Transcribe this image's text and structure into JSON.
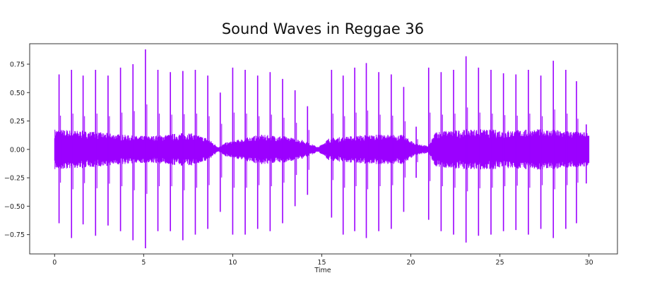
{
  "chart_data": {
    "type": "line",
    "title": "Sound Waves in Reggae 36",
    "xlabel": "Time",
    "ylabel": "",
    "xlim": [
      -1.4,
      31.6
    ],
    "ylim": [
      -0.92,
      0.93
    ],
    "x_ticks": [
      0,
      5,
      10,
      15,
      20,
      25,
      30
    ],
    "x_tick_labels": [
      "0",
      "5",
      "10",
      "15",
      "20",
      "25",
      "30"
    ],
    "y_ticks": [
      0.75,
      0.5,
      0.25,
      0.0,
      -0.25,
      -0.5,
      -0.75
    ],
    "y_tick_labels": [
      "0.75",
      "0.50",
      "0.25",
      "0.00",
      "−0.25",
      "−0.50",
      "−0.75"
    ],
    "grid": false,
    "legend": "none",
    "series": [
      {
        "color": "#9b00ff",
        "duration": 30.0,
        "body_envelope": [
          {
            "t": 0.0,
            "a": 0.18
          },
          {
            "t": 2.0,
            "a": 0.16
          },
          {
            "t": 4.5,
            "a": 0.12
          },
          {
            "t": 5.5,
            "a": 0.12
          },
          {
            "t": 7.5,
            "a": 0.15
          },
          {
            "t": 8.6,
            "a": 0.1
          },
          {
            "t": 9.2,
            "a": 0.02
          },
          {
            "t": 9.6,
            "a": 0.06
          },
          {
            "t": 11.5,
            "a": 0.13
          },
          {
            "t": 12.8,
            "a": 0.12
          },
          {
            "t": 14.0,
            "a": 0.08
          },
          {
            "t": 14.8,
            "a": 0.02
          },
          {
            "t": 15.4,
            "a": 0.1
          },
          {
            "t": 17.5,
            "a": 0.13
          },
          {
            "t": 19.5,
            "a": 0.13
          },
          {
            "t": 20.3,
            "a": 0.05
          },
          {
            "t": 21.0,
            "a": 0.03
          },
          {
            "t": 21.4,
            "a": 0.16
          },
          {
            "t": 23.5,
            "a": 0.18
          },
          {
            "t": 25.5,
            "a": 0.17
          },
          {
            "t": 27.5,
            "a": 0.18
          },
          {
            "t": 30.0,
            "a": 0.15
          }
        ],
        "peaks": [
          {
            "t": 0.25,
            "pos": 0.66,
            "neg": -0.65
          },
          {
            "t": 0.95,
            "pos": 0.7,
            "neg": -0.78
          },
          {
            "t": 1.6,
            "pos": 0.65,
            "neg": -0.66
          },
          {
            "t": 2.3,
            "pos": 0.7,
            "neg": -0.76
          },
          {
            "t": 3.0,
            "pos": 0.65,
            "neg": -0.67
          },
          {
            "t": 3.7,
            "pos": 0.72,
            "neg": -0.72
          },
          {
            "t": 4.4,
            "pos": 0.75,
            "neg": -0.8
          },
          {
            "t": 5.1,
            "pos": 0.88,
            "neg": -0.87
          },
          {
            "t": 5.8,
            "pos": 0.7,
            "neg": -0.72
          },
          {
            "t": 6.5,
            "pos": 0.68,
            "neg": -0.72
          },
          {
            "t": 7.2,
            "pos": 0.69,
            "neg": -0.8
          },
          {
            "t": 7.9,
            "pos": 0.7,
            "neg": -0.75
          },
          {
            "t": 8.6,
            "pos": 0.65,
            "neg": -0.7
          },
          {
            "t": 9.3,
            "pos": 0.5,
            "neg": -0.55
          },
          {
            "t": 10.0,
            "pos": 0.72,
            "neg": -0.75
          },
          {
            "t": 10.7,
            "pos": 0.7,
            "neg": -0.75
          },
          {
            "t": 11.4,
            "pos": 0.65,
            "neg": -0.7
          },
          {
            "t": 12.1,
            "pos": 0.68,
            "neg": -0.72
          },
          {
            "t": 12.8,
            "pos": 0.62,
            "neg": -0.65
          },
          {
            "t": 13.5,
            "pos": 0.52,
            "neg": -0.5
          },
          {
            "t": 14.2,
            "pos": 0.38,
            "neg": -0.4
          },
          {
            "t": 15.55,
            "pos": 0.7,
            "neg": -0.6
          },
          {
            "t": 16.2,
            "pos": 0.65,
            "neg": -0.75
          },
          {
            "t": 16.85,
            "pos": 0.72,
            "neg": -0.72
          },
          {
            "t": 17.5,
            "pos": 0.76,
            "neg": -0.78
          },
          {
            "t": 18.2,
            "pos": 0.68,
            "neg": -0.72
          },
          {
            "t": 18.9,
            "pos": 0.66,
            "neg": -0.7
          },
          {
            "t": 19.6,
            "pos": 0.55,
            "neg": -0.55
          },
          {
            "t": 20.3,
            "pos": 0.2,
            "neg": -0.25
          },
          {
            "t": 21.0,
            "pos": 0.72,
            "neg": -0.62
          },
          {
            "t": 21.7,
            "pos": 0.68,
            "neg": -0.72
          },
          {
            "t": 22.4,
            "pos": 0.7,
            "neg": -0.75
          },
          {
            "t": 23.1,
            "pos": 0.82,
            "neg": -0.82
          },
          {
            "t": 23.8,
            "pos": 0.72,
            "neg": -0.76
          },
          {
            "t": 24.5,
            "pos": 0.7,
            "neg": -0.75
          },
          {
            "t": 25.2,
            "pos": 0.67,
            "neg": -0.72
          },
          {
            "t": 25.9,
            "pos": 0.66,
            "neg": -0.71
          },
          {
            "t": 26.6,
            "pos": 0.7,
            "neg": -0.75
          },
          {
            "t": 27.3,
            "pos": 0.65,
            "neg": -0.7
          },
          {
            "t": 28.0,
            "pos": 0.78,
            "neg": -0.78
          },
          {
            "t": 28.7,
            "pos": 0.7,
            "neg": -0.7
          },
          {
            "t": 29.3,
            "pos": 0.6,
            "neg": -0.65
          },
          {
            "t": 29.85,
            "pos": 0.22,
            "neg": -0.3
          }
        ]
      }
    ]
  }
}
